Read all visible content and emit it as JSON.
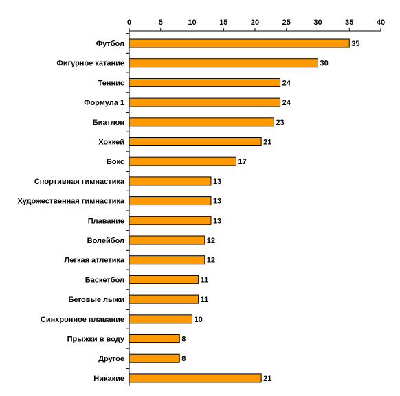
{
  "chart_data": {
    "type": "bar",
    "orientation": "horizontal",
    "categories": [
      "Футбол",
      "Фигурное катание",
      "Теннис",
      "Формула 1",
      "Биатлон",
      "Хоккей",
      "Бокс",
      "Спортивная гимнастика",
      "Художественная гимнастика",
      "Плавание",
      "Волейбол",
      "Легкая атлетика",
      "Баскетбол",
      "Беговые лыжи",
      "Синхронное плавание",
      "Прыжки в воду",
      "Другое",
      "Никакие"
    ],
    "values": [
      35,
      30,
      24,
      24,
      23,
      21,
      17,
      13,
      13,
      13,
      12,
      12,
      11,
      11,
      10,
      8,
      8,
      21
    ],
    "value_labels": [
      "35",
      "30",
      "24",
      "24",
      "23",
      "21",
      "17",
      "13",
      "13",
      "13",
      "12",
      "12",
      "11",
      "11",
      "10",
      "8",
      "8",
      "21"
    ],
    "xlim": [
      0,
      40
    ],
    "x_ticks": [
      0,
      5,
      10,
      15,
      20,
      25,
      30,
      35,
      40
    ],
    "x_tick_labels": [
      "0",
      "5",
      "10",
      "15",
      "20",
      "25",
      "30",
      "35",
      "40"
    ],
    "x_axis_position": "top",
    "grid": false,
    "legend": "none",
    "colors": {
      "bar": "#FF9900",
      "bar_border": "#000000",
      "axis": "#000000"
    }
  }
}
